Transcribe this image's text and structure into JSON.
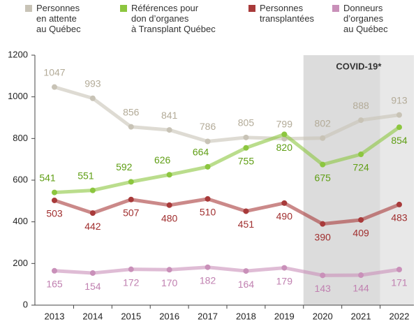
{
  "chart_data": {
    "type": "line",
    "categories": [
      "2013",
      "2014",
      "2015",
      "2016",
      "2017",
      "2018",
      "2019",
      "2020",
      "2021",
      "2022"
    ],
    "series": [
      {
        "name": "Personnes\nen attente\nau Québec",
        "color": "#c8c3b6",
        "label_color": "#b3ab98",
        "values": [
          1047,
          993,
          856,
          841,
          786,
          805,
          799,
          802,
          888,
          913
        ]
      },
      {
        "name": "Références pour\ndon d’organes\nà Transplant Québec",
        "color": "#8cc63f",
        "label_color": "#5f9e14",
        "values": [
          541,
          551,
          592,
          626,
          664,
          755,
          820,
          675,
          724,
          854
        ]
      },
      {
        "name": "Personnes\ntransplantées",
        "color": "#a83a3a",
        "label_color": "#a02e2e",
        "values": [
          503,
          442,
          507,
          480,
          510,
          451,
          490,
          390,
          409,
          483
        ]
      },
      {
        "name": "Donneurs\nd’organes\nau Québec",
        "color": "#c990b9",
        "label_color": "#c080b0",
        "values": [
          165,
          154,
          172,
          170,
          182,
          164,
          179,
          143,
          144,
          171
        ]
      }
    ],
    "shade": {
      "label": "COVID-19*",
      "from": "2020",
      "to": "2022"
    },
    "ylim": [
      0,
      1200
    ],
    "yticks": [
      0,
      200,
      400,
      600,
      800,
      1000,
      1200
    ],
    "grid": false
  }
}
